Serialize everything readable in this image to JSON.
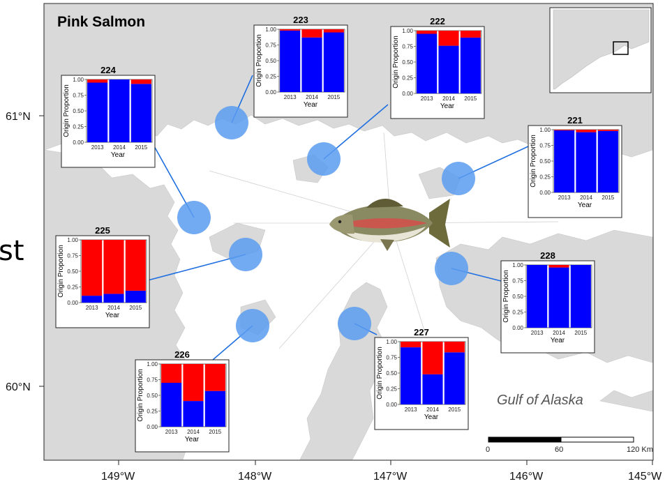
{
  "map_title": "Pink Salmon",
  "region_label": "Gulf of Alaska",
  "edge_glyph": "st",
  "latitude_labels": [
    "61°N",
    "60°N"
  ],
  "longitude_labels": [
    "149°W",
    "148°W",
    "147°W",
    "146°W",
    "145°W"
  ],
  "scale_bar": {
    "labels": [
      "0",
      "60",
      "120 Km"
    ]
  },
  "colors": {
    "water": "#ffffff",
    "land": "#d9d9d9",
    "circle": "#5b9cf0",
    "blue": "#0000ff",
    "red": "#ff0000",
    "connector": "#1f6fe0"
  },
  "chart_data": [
    {
      "type": "bar",
      "stacked": true,
      "title": "224",
      "categories": [
        "2013",
        "2014",
        "2015"
      ],
      "series": [
        {
          "name": "",
          "values": [
            0.95,
            1.0,
            0.93
          ]
        },
        {
          "name": "",
          "values": [
            0.05,
            0.0,
            0.07
          ]
        }
      ],
      "ylabel": "Origin Proportion",
      "xlabel": "Year",
      "ylim": [
        0,
        1
      ],
      "yticks": [
        "0.00",
        "0.25",
        "0.50",
        "0.75",
        "1.00"
      ]
    },
    {
      "type": "bar",
      "stacked": true,
      "title": "223",
      "categories": [
        "2013",
        "2014",
        "2015"
      ],
      "series": [
        {
          "name": "",
          "values": [
            0.98,
            0.87,
            0.95
          ]
        },
        {
          "name": "",
          "values": [
            0.02,
            0.13,
            0.05
          ]
        }
      ],
      "ylabel": "Origin Proportion",
      "xlabel": "Year",
      "ylim": [
        0,
        1
      ],
      "yticks": [
        "0.00",
        "0.25",
        "0.50",
        "0.75",
        "1.00"
      ]
    },
    {
      "type": "bar",
      "stacked": true,
      "title": "222",
      "categories": [
        "2013",
        "2014",
        "2015"
      ],
      "series": [
        {
          "name": "",
          "values": [
            0.95,
            0.76,
            0.89
          ]
        },
        {
          "name": "",
          "values": [
            0.05,
            0.24,
            0.11
          ]
        }
      ],
      "ylabel": "Origin Proportion",
      "xlabel": "Year",
      "ylim": [
        0,
        1
      ],
      "yticks": [
        "0.00",
        "0.25",
        "0.50",
        "0.75",
        "1.00"
      ]
    },
    {
      "type": "bar",
      "stacked": true,
      "title": "221",
      "categories": [
        "2013",
        "2014",
        "2015"
      ],
      "series": [
        {
          "name": "",
          "values": [
            0.99,
            0.96,
            0.98
          ]
        },
        {
          "name": "",
          "values": [
            0.01,
            0.04,
            0.02
          ]
        }
      ],
      "ylabel": "Origin Proportion",
      "xlabel": "Year",
      "ylim": [
        0,
        1
      ],
      "yticks": [
        "0.00",
        "0.25",
        "0.50",
        "0.75",
        "1.00"
      ]
    },
    {
      "type": "bar",
      "stacked": true,
      "title": "225",
      "categories": [
        "2013",
        "2014",
        "2015"
      ],
      "series": [
        {
          "name": "",
          "values": [
            0.11,
            0.14,
            0.19
          ]
        },
        {
          "name": "",
          "values": [
            0.89,
            0.86,
            0.81
          ]
        }
      ],
      "ylabel": "Origin Proportion",
      "xlabel": "Year",
      "ylim": [
        0,
        1
      ],
      "yticks": [
        "0.00",
        "0.25",
        "0.50",
        "0.75",
        "1.00"
      ]
    },
    {
      "type": "bar",
      "stacked": true,
      "title": "228",
      "categories": [
        "2013",
        "2014",
        "2015"
      ],
      "series": [
        {
          "name": "",
          "values": [
            1.0,
            0.96,
            1.0
          ]
        },
        {
          "name": "",
          "values": [
            0.0,
            0.04,
            0.0
          ]
        }
      ],
      "ylabel": "Origin Proportion",
      "xlabel": "Year",
      "ylim": [
        0,
        1
      ],
      "yticks": [
        "0.00",
        "0.25",
        "0.50",
        "0.75",
        "1.00"
      ]
    },
    {
      "type": "bar",
      "stacked": true,
      "title": "226",
      "categories": [
        "2013",
        "2014",
        "2015"
      ],
      "series": [
        {
          "name": "",
          "values": [
            0.7,
            0.41,
            0.57
          ]
        },
        {
          "name": "",
          "values": [
            0.3,
            0.59,
            0.43
          ]
        }
      ],
      "ylabel": "Origin Proportion",
      "xlabel": "Year",
      "ylim": [
        0,
        1
      ],
      "yticks": [
        "0.00",
        "0.25",
        "0.50",
        "0.75",
        "1.00"
      ]
    },
    {
      "type": "bar",
      "stacked": true,
      "title": "227",
      "categories": [
        "2013",
        "2014",
        "2015"
      ],
      "series": [
        {
          "name": "",
          "values": [
            0.91,
            0.48,
            0.83
          ]
        },
        {
          "name": "",
          "values": [
            0.09,
            0.52,
            0.17
          ]
        }
      ],
      "ylabel": "Origin Proportion",
      "xlabel": "Year",
      "ylim": [
        0,
        1
      ],
      "yticks": [
        "0.00",
        "0.25",
        "0.50",
        "0.75",
        "1.00"
      ]
    }
  ]
}
